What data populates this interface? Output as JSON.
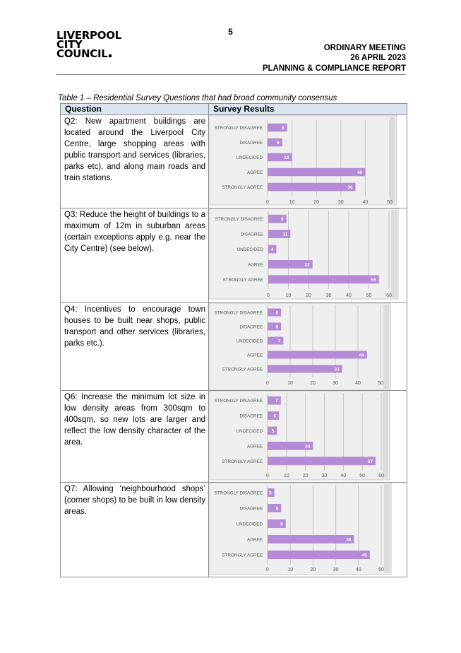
{
  "page": {
    "number": "5"
  },
  "header": {
    "logo_lines": [
      "LIVERPOOL",
      "CITY",
      "COUNCIL"
    ],
    "meeting": "ORDINARY MEETING",
    "date": "26 APRIL 2023",
    "report": "PLANNING & COMPLIANCE REPORT"
  },
  "table": {
    "caption": "Table 1 – Residential Survey Questions that had broad community consensus",
    "col_question": "Question",
    "col_results": "Survey Results",
    "rows": [
      {
        "question": "Q2: New apartment buildings are located around the Liverpool City Centre, large shopping areas with public transport and services (libraries, parks etc), and along main roads and train stations."
      },
      {
        "question": "Q3: Reduce the height of buildings to a maximum of 12m in suburban areas (certain exceptions apply e.g. near the City Centre) (see below)."
      },
      {
        "question": "Q4: Incentives to encourage town houses to be built near shops, public transport and other services (libraries, parks etc.)."
      },
      {
        "question": "Q6: Increase the minimum lot size in low density areas from 300sqm to 400sqm, so new lots are larger and reflect the low density character of the area."
      },
      {
        "question": "Q7: Allowing ‘neighbourhood shops’ (corner shops) to be built in low density areas."
      }
    ]
  },
  "chart_data": [
    {
      "type": "bar",
      "orientation": "horizontal",
      "categories": [
        "STRONGLY DISAGREE",
        "DISAGREE",
        "UNDECIDED",
        "AGREE",
        "STRONGLY AGREE"
      ],
      "values": [
        8,
        6,
        10,
        40,
        36
      ],
      "xlim": [
        0,
        50
      ],
      "xticks": [
        "0",
        "10",
        "20",
        "30",
        "40",
        "50"
      ],
      "grid": true,
      "color": "#b58ad6"
    },
    {
      "type": "bar",
      "orientation": "horizontal",
      "categories": [
        "STRONGLY DISAGREE",
        "DISAGREE",
        "UNDECIDED",
        "AGREE",
        "STRONGLY AGREE"
      ],
      "values": [
        9,
        11,
        4,
        22,
        55
      ],
      "xlim": [
        0,
        60
      ],
      "xticks": [
        "0",
        "10",
        "20",
        "30",
        "40",
        "50",
        "60"
      ],
      "grid": true,
      "color": "#b58ad6"
    },
    {
      "type": "bar",
      "orientation": "horizontal",
      "categories": [
        "STRONGLY DISAGREE",
        "DISAGREE",
        "UNDECIDED",
        "AGREE",
        "STRONGLY AGREE"
      ],
      "values": [
        6,
        6,
        7,
        44,
        33
      ],
      "xlim": [
        0,
        50
      ],
      "xticks": [
        "0",
        "10",
        "20",
        "30",
        "40",
        "50"
      ],
      "grid": true,
      "color": "#b58ad6"
    },
    {
      "type": "bar",
      "orientation": "horizontal",
      "categories": [
        "STRONGLY DISAGREE",
        "DISAGREE",
        "UNDECIDED",
        "AGREE",
        "STRONGLY AGREE"
      ],
      "values": [
        7,
        6,
        5,
        24,
        57
      ],
      "xlim": [
        0,
        60
      ],
      "xticks": [
        "0",
        "10",
        "20",
        "30",
        "40",
        "50",
        "60"
      ],
      "grid": true,
      "color": "#b58ad6"
    },
    {
      "type": "bar",
      "orientation": "horizontal",
      "categories": [
        "STRONGLY DISAGREE",
        "DISAGREE",
        "UNDECIDED",
        "AGREE",
        "STRONGLY AGREE"
      ],
      "values": [
        3,
        6,
        8,
        38,
        45
      ],
      "xlim": [
        0,
        50
      ],
      "xticks": [
        "0",
        "10",
        "20",
        "30",
        "40",
        "50"
      ],
      "grid": true,
      "color": "#b58ad6"
    }
  ]
}
